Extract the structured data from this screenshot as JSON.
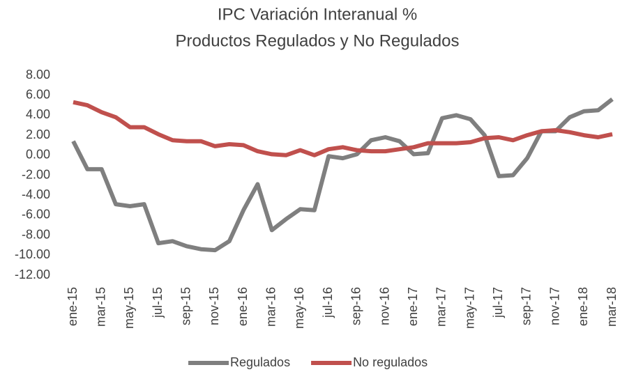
{
  "chart_data": {
    "type": "line",
    "title": "IPC Variación Interanual %",
    "subtitle": "Productos Regulados y No Regulados",
    "categories": [
      "ene-15",
      null,
      "mar-15",
      null,
      "may-15",
      null,
      "jul-15",
      null,
      "sep-15",
      null,
      "nov-15",
      null,
      "ene-16",
      null,
      "mar-16",
      null,
      "may-16",
      null,
      "jul-16",
      null,
      "sep-16",
      null,
      "nov-16",
      null,
      "ene-17",
      null,
      "mar-17",
      null,
      "may-17",
      null,
      "jul-17",
      null,
      "sep-17",
      null,
      "nov-17",
      null,
      "ene-18",
      null,
      "mar-18"
    ],
    "series": [
      {
        "name": "Regulados",
        "color": "#7f7f7f",
        "values": [
          1.4,
          -1.4,
          -1.4,
          -4.9,
          -5.1,
          -4.9,
          -8.8,
          -8.6,
          -9.1,
          -9.4,
          -9.5,
          -8.6,
          -5.5,
          -2.9,
          -7.5,
          -6.4,
          -5.4,
          -5.5,
          -0.1,
          -0.3,
          0.1,
          1.5,
          1.8,
          1.4,
          0.1,
          0.2,
          3.7,
          4.0,
          3.6,
          2.0,
          -2.1,
          -2.0,
          -0.3,
          2.4,
          2.4,
          3.8,
          4.4,
          4.5,
          5.6
        ]
      },
      {
        "name": "No regulados",
        "color": "#c0504d",
        "values": [
          5.3,
          5.0,
          4.3,
          3.8,
          2.8,
          2.8,
          2.1,
          1.5,
          1.4,
          1.4,
          0.9,
          1.1,
          1.0,
          0.4,
          0.1,
          0.0,
          0.5,
          0.0,
          0.6,
          0.8,
          0.5,
          0.4,
          0.4,
          0.6,
          0.8,
          1.2,
          1.2,
          1.2,
          1.3,
          1.7,
          1.8,
          1.5,
          2.0,
          2.4,
          2.5,
          2.3,
          2.0,
          1.8,
          2.1
        ]
      }
    ],
    "ylim": [
      -12,
      8
    ],
    "yticks": [
      {
        "value": 8,
        "label": "8.00"
      },
      {
        "value": 6,
        "label": "6.00"
      },
      {
        "value": 4,
        "label": "4.00"
      },
      {
        "value": 2,
        "label": "2.00"
      },
      {
        "value": 0,
        "label": "0.00"
      },
      {
        "value": -2,
        "label": "-2.00"
      },
      {
        "value": -4,
        "label": "-4.00"
      },
      {
        "value": -6,
        "label": "-6.00"
      },
      {
        "value": -8,
        "label": "-8.00"
      },
      {
        "value": -10,
        "label": "-10.00"
      },
      {
        "value": -12,
        "label": "-12.00"
      }
    ],
    "grid": false,
    "legend": "bottom"
  }
}
